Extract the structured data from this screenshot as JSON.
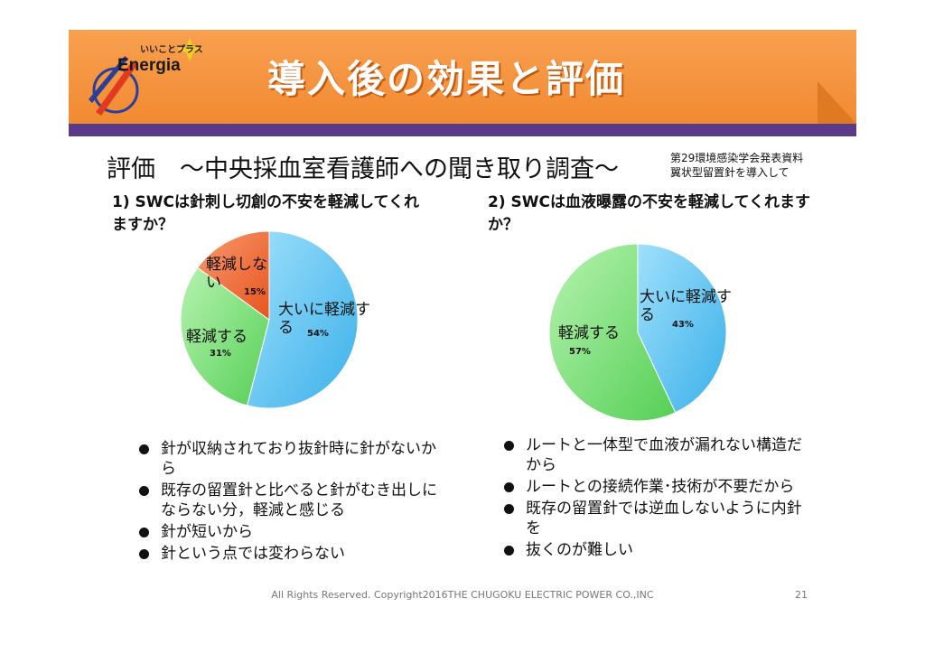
{
  "header": {
    "logo_tagline": "いいことプラス",
    "logo_name": "Energia",
    "title": "導入後の効果と評価"
  },
  "section": {
    "title": "評価　～中央採血室看護師への聞き取り調査～",
    "source_line1": "第29環境感染学会発表資料",
    "source_line2": "翼状型留置針を導入して"
  },
  "colors": {
    "orange": "#f28a32",
    "purple": "#5b3a8c",
    "blue": "#5ec4f2",
    "green": "#7fe07c",
    "red": "#f06a3a"
  },
  "chart_data": [
    {
      "type": "pie",
      "title": "1)  SWCは針刺し切創の不安を軽減してくれますか？",
      "labels": [
        "大いに軽減する",
        "軽減する",
        "軽減しない"
      ],
      "values": [
        54,
        31,
        15
      ],
      "value_labels": [
        "54%",
        "31%",
        "15%"
      ]
    },
    {
      "type": "pie",
      "title": "2)  SWCは血液曝露の不安を軽減してくれますか？",
      "labels": [
        "大いに軽減する",
        "軽減する"
      ],
      "values": [
        43,
        57
      ],
      "value_labels": [
        "43%",
        "57%"
      ]
    }
  ],
  "reasons_left": [
    "針が収納されており抜針時に針がないから",
    "既存の留置針と比べると針がむき出しにならない分，軽減と感じる",
    "針が短いから",
    "針という点では変わらない"
  ],
  "reasons_right": [
    "ルートと一体型で血液が漏れない構造だから",
    "ルートとの接続作業･技術が不要だから",
    "既存の留置針では逆血しないように内針を",
    "抜くのが難しい"
  ],
  "footer": {
    "copyright": "All Rights Reserved. Copyright2016THE CHUGOKU ELECTRIC POWER CO.,INC",
    "page": "21"
  }
}
